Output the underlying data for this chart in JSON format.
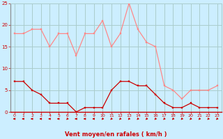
{
  "x": [
    0,
    1,
    2,
    3,
    4,
    5,
    6,
    7,
    8,
    9,
    10,
    11,
    12,
    13,
    14,
    15,
    16,
    17,
    18,
    19,
    20,
    21,
    22,
    23
  ],
  "rafales": [
    18,
    18,
    19,
    19,
    15,
    18,
    18,
    13,
    18,
    18,
    21,
    15,
    18,
    25,
    19,
    16,
    15,
    6,
    5,
    3,
    5,
    5,
    5,
    6
  ],
  "moyen": [
    7,
    7,
    5,
    4,
    2,
    2,
    2,
    0,
    1,
    1,
    1,
    5,
    7,
    7,
    6,
    6,
    4,
    2,
    1,
    1,
    2,
    1,
    1,
    1
  ],
  "bg_color": "#cceeff",
  "grid_color": "#aacccc",
  "line_color_rafales": "#ff8888",
  "line_color_moyen": "#cc0000",
  "xlabel": "Vent moyen/en rafales ( km/h )",
  "ylim": [
    0,
    25
  ],
  "ytick_labels": [
    "0",
    "5",
    "10",
    "15",
    "20",
    "25"
  ],
  "ytick_vals": [
    0,
    5,
    10,
    15,
    20,
    25
  ],
  "xticks": [
    0,
    1,
    2,
    3,
    4,
    5,
    6,
    7,
    8,
    9,
    10,
    11,
    12,
    13,
    14,
    15,
    16,
    17,
    18,
    19,
    20,
    21,
    22,
    23
  ],
  "arrow_angles_deg": [
    180,
    180,
    180,
    180,
    180,
    180,
    225,
    180,
    180,
    180,
    225,
    225,
    225,
    225,
    225,
    225,
    225,
    225,
    225,
    225,
    225,
    225,
    225,
    225
  ]
}
